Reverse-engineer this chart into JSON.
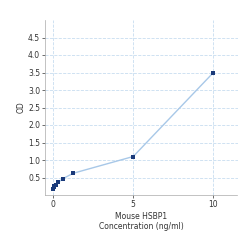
{
  "x": [
    0,
    0.04,
    0.08,
    0.16,
    0.31,
    0.63,
    1.25,
    5,
    10
  ],
  "y": [
    0.18,
    0.22,
    0.26,
    0.3,
    0.36,
    0.47,
    0.62,
    1.1,
    3.5
  ],
  "xlabel_line1": "Mouse HSBP1",
  "xlabel_line2": "Concentration (ng/ml)",
  "ylabel": "OD",
  "xlim": [
    -0.5,
    11.5
  ],
  "ylim": [
    0,
    5.0
  ],
  "yticks": [
    0.5,
    1.0,
    1.5,
    2.0,
    2.5,
    3.0,
    3.5,
    4.0,
    4.5
  ],
  "xticks": [
    0,
    5,
    10
  ],
  "line_color": "#a8c8e8",
  "marker_color": "#1a3a7a",
  "marker_size": 3.5,
  "line_width": 1.0,
  "grid_color": "#c8ddf0",
  "bg_color": "#ffffff",
  "label_fontsize": 5.5,
  "tick_fontsize": 5.5,
  "spine_color": "#aaaaaa"
}
